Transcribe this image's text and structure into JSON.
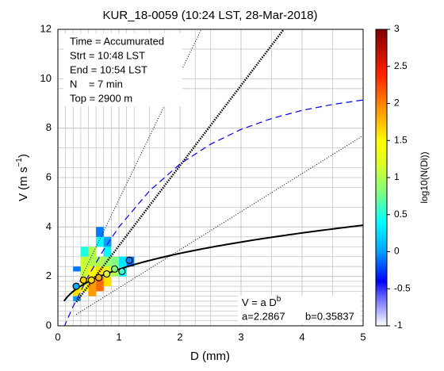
{
  "chart_data": {
    "type": "heatmap",
    "title": "KUR_18-0059 (10:24 LST, 28-Mar-2018)",
    "xlabel": "D (mm)",
    "ylabel": "V (m s",
    "ylabel_sup": "−1",
    "ylabel_end": ")",
    "xlim": [
      0,
      5
    ],
    "xticks": [
      0,
      1,
      2,
      3,
      4,
      5
    ],
    "ylim": [
      0,
      12
    ],
    "yticks": [
      0,
      2,
      4,
      6,
      8,
      10,
      12
    ],
    "xgrid": [
      0.125,
      0.25,
      0.375,
      0.5,
      0.625,
      0.75,
      0.875,
      1,
      1.125,
      1.25,
      1.5,
      1.75,
      2,
      2.25,
      2.5,
      3,
      3.5,
      4,
      4.5
    ],
    "ygrid": [
      0.2,
      0.4,
      0.6,
      0.8,
      1,
      1.2,
      1.4,
      1.6,
      1.8,
      2,
      2.4,
      2.8,
      3.2,
      3.6,
      4,
      4.8,
      5.6,
      6.4,
      7.2,
      8,
      9.6,
      11.2
    ],
    "info": [
      "Time = Accumurated",
      "Strt = 10:48 LST",
      "End = 10:54 LST",
      "N    = 7 min",
      "Top = 2900 m"
    ],
    "colorbar_label": "log10(N(Di))",
    "clim": [
      -1,
      3
    ],
    "cticks": [
      -1,
      -0.5,
      0,
      0.5,
      1,
      1.5,
      2,
      2.5,
      3
    ],
    "cells": [
      {
        "x": [
          0.25,
          0.375
        ],
        "y": [
          1.0,
          1.2
        ],
        "z": 0.0
      },
      {
        "x": [
          0.25,
          0.375
        ],
        "y": [
          1.2,
          1.6
        ],
        "z": 1.6
      },
      {
        "x": [
          0.25,
          0.375
        ],
        "y": [
          2.2,
          2.4
        ],
        "z": -0.1
      },
      {
        "x": [
          0.375,
          0.5
        ],
        "y": [
          1.4,
          2.0
        ],
        "z": 1.4
      },
      {
        "x": [
          0.375,
          0.5
        ],
        "y": [
          2.0,
          2.8
        ],
        "z": 1.1
      },
      {
        "x": [
          0.375,
          0.5
        ],
        "y": [
          2.8,
          3.2
        ],
        "z": 0.5
      },
      {
        "x": [
          0.5,
          0.625
        ],
        "y": [
          1.2,
          2.0
        ],
        "z": 1.9
      },
      {
        "x": [
          0.5,
          0.625
        ],
        "y": [
          2.0,
          2.4
        ],
        "z": 1.5
      },
      {
        "x": [
          0.5,
          0.625
        ],
        "y": [
          2.4,
          3.2
        ],
        "z": 1.0
      },
      {
        "x": [
          0.625,
          0.75
        ],
        "y": [
          1.4,
          2.0
        ],
        "z": 2.1
      },
      {
        "x": [
          0.625,
          0.75
        ],
        "y": [
          2.0,
          2.4
        ],
        "z": 1.6
      },
      {
        "x": [
          0.625,
          0.75
        ],
        "y": [
          2.4,
          2.8
        ],
        "z": 1.0
      },
      {
        "x": [
          0.625,
          0.75
        ],
        "y": [
          3.2,
          3.6
        ],
        "z": 0.4
      },
      {
        "x": [
          0.625,
          0.75
        ],
        "y": [
          3.6,
          4.0
        ],
        "z": -0.1
      },
      {
        "x": [
          0.75,
          0.875
        ],
        "y": [
          1.6,
          2.0
        ],
        "z": 1.6
      },
      {
        "x": [
          0.75,
          0.875
        ],
        "y": [
          2.0,
          2.4
        ],
        "z": 1.3
      },
      {
        "x": [
          0.75,
          0.875
        ],
        "y": [
          2.4,
          2.8
        ],
        "z": 0.9
      },
      {
        "x": [
          0.75,
          0.875
        ],
        "y": [
          2.8,
          3.2
        ],
        "z": 0.4
      },
      {
        "x": [
          0.75,
          0.875
        ],
        "y": [
          3.2,
          3.6
        ],
        "z": 0.0
      },
      {
        "x": [
          0.875,
          1.0
        ],
        "y": [
          2.0,
          2.4
        ],
        "z": 1.0
      },
      {
        "x": [
          0.875,
          1.0
        ],
        "y": [
          2.4,
          2.8
        ],
        "z": 0.8
      },
      {
        "x": [
          1.0,
          1.125
        ],
        "y": [
          2.0,
          2.4
        ],
        "z": 0.4
      },
      {
        "x": [
          1.0,
          1.125
        ],
        "y": [
          2.4,
          2.8
        ],
        "z": 0.3
      },
      {
        "x": [
          1.125,
          1.25
        ],
        "y": [
          2.4,
          2.8
        ],
        "z": -0.1
      }
    ],
    "means": {
      "x": [
        0.3,
        0.42,
        0.55,
        0.67,
        0.8,
        0.93,
        1.05,
        1.17
      ],
      "y": [
        1.6,
        1.85,
        1.85,
        1.95,
        2.1,
        2.3,
        2.2,
        2.65
      ],
      "colors": [
        "#00b0ff",
        "#ffd000",
        "#ffe000",
        "#ffb000",
        "#e0ff40",
        "#80ff80",
        "#40ffe0",
        "#2080ff"
      ]
    },
    "fit": {
      "a": 2.2867,
      "b": 0.35837,
      "equation": "V = a D",
      "exponent": "b",
      "a_label": "a=2.2867",
      "b_label": "b=0.35837"
    },
    "series": [
      {
        "color": "#0000ff",
        "dash": "8 5",
        "width": 1.2,
        "x": [
          0.1,
          0.25,
          0.5,
          0.75,
          1,
          1.5,
          2,
          2.5,
          3,
          3.5,
          4,
          4.5,
          5
        ],
        "y": [
          -0.05,
          0.785,
          2.02,
          3.08,
          4.0,
          5.46,
          6.55,
          7.35,
          7.95,
          8.39,
          8.72,
          8.96,
          9.14
        ]
      },
      {
        "color": "#000000",
        "dash": "1.5 1.5",
        "width": 2.5,
        "x": [
          0.3,
          3.7
        ],
        "y": [
          0.97,
          12
        ]
      },
      {
        "color": "#000000",
        "dash": "1 2",
        "width": 1,
        "x": [
          0.3,
          2.35
        ],
        "y": [
          1.53,
          12
        ]
      },
      {
        "color": "#000000",
        "dash": "1 2",
        "width": 1,
        "x": [
          0.3,
          5
        ],
        "y": [
          0.46,
          7.7
        ]
      }
    ]
  }
}
